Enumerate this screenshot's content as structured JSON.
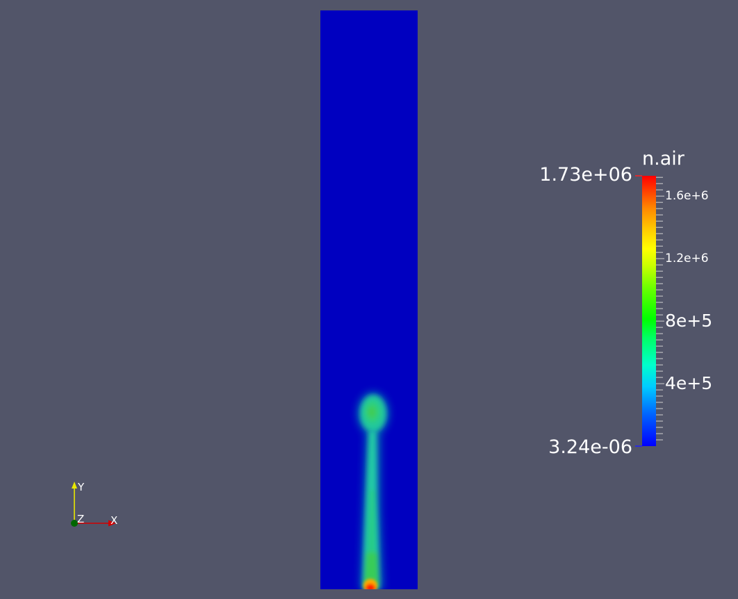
{
  "legend": {
    "title": "n.air",
    "max_label": "1.73e+06",
    "min_label": "3.24e-06",
    "range": [
      3.24e-06,
      1730000
    ],
    "colormap": "rainbow",
    "tick_labels": [
      {
        "value": 1600000,
        "text": "1.6e+6",
        "size": "small"
      },
      {
        "value": 1200000,
        "text": "1.2e+6",
        "size": "small"
      },
      {
        "value": 800000,
        "text": "8e+5",
        "size": "large"
      },
      {
        "value": 400000,
        "text": "4e+5",
        "size": "large"
      }
    ],
    "minor_ticks_per_interval": 9
  },
  "axes": {
    "x_label": "X",
    "y_label": "Y",
    "z_label": "Z",
    "x_color": "#d10000",
    "y_color": "#e8e800",
    "z_color": "#006600"
  },
  "colors": {
    "background": "#525569",
    "field_low": "#0000c0",
    "field_mid": "#1ed58a",
    "field_high": "#ff0000"
  }
}
